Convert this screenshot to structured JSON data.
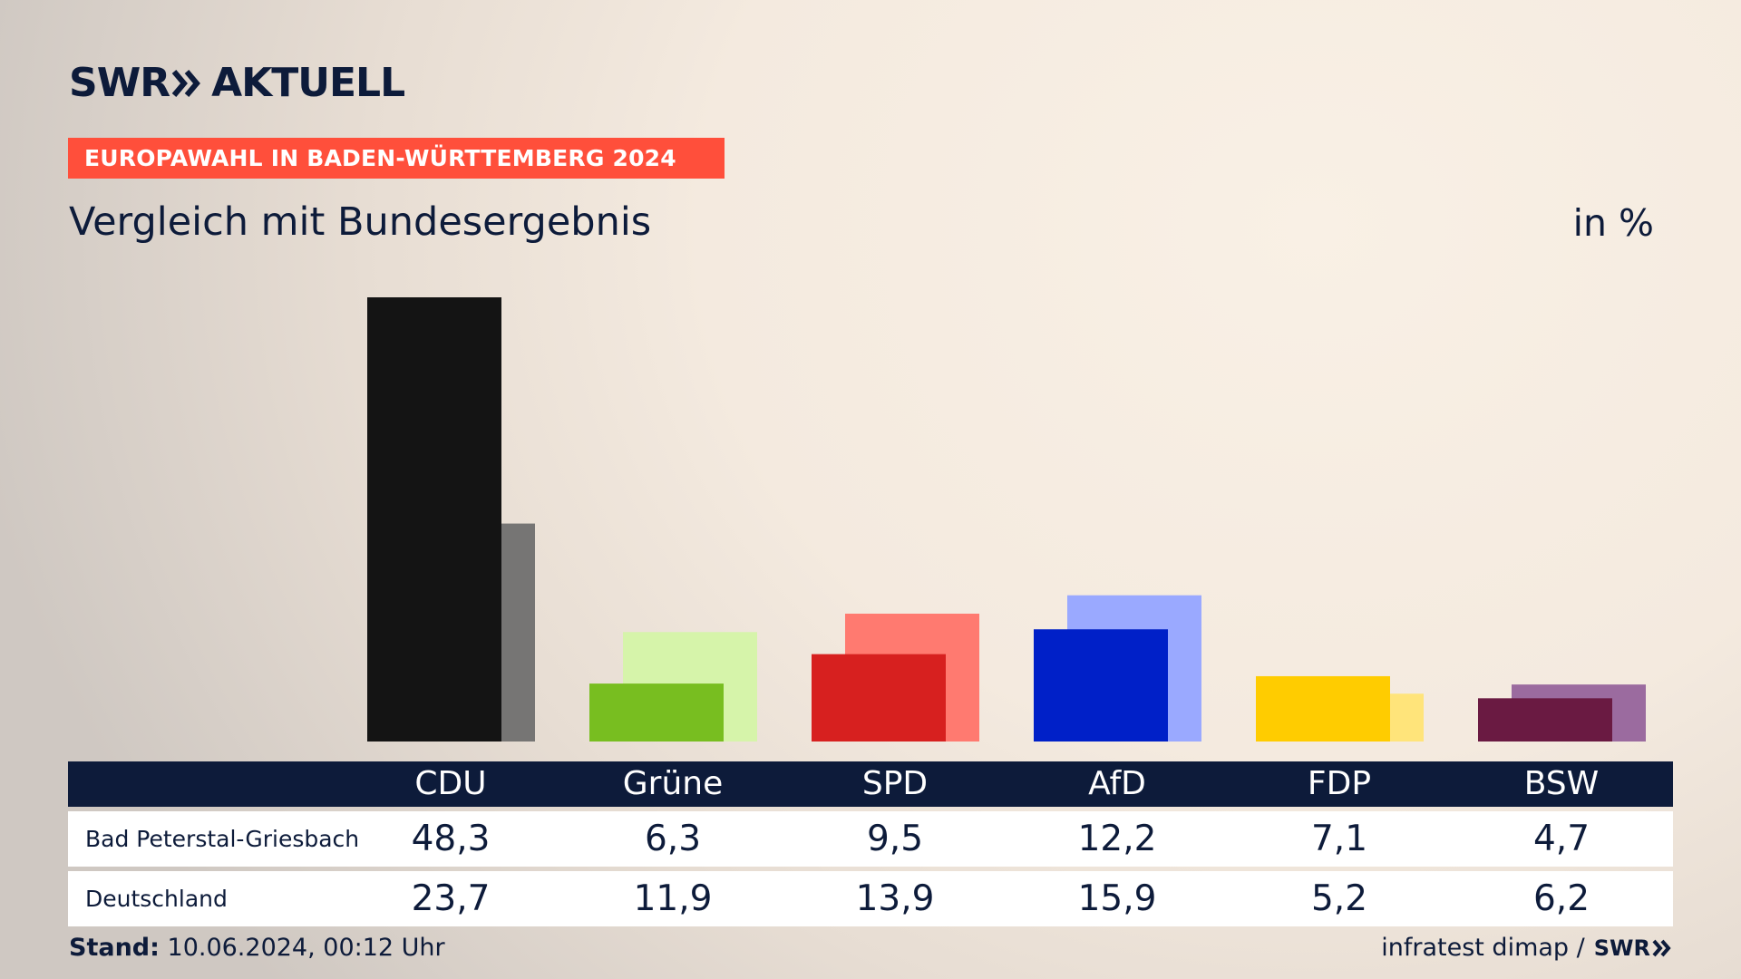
{
  "brand": {
    "logo_left": "SWR",
    "logo_right": "AKTUELL",
    "footer_logo": "SWR"
  },
  "kicker": "EUROPAWAHL IN BADEN-WÜRTTEMBERG 2024",
  "title": "Vergleich mit Bundesergebnis",
  "unit": "in %",
  "table": {
    "rows": [
      {
        "label": "Bad Peterstal-Griesbach"
      },
      {
        "label": "Deutschland"
      }
    ]
  },
  "footer": {
    "stand_label": "Stand:",
    "stand_value": "10.06.2024, 00:12 Uhr",
    "source": "infratest dimap /"
  },
  "chart_data": {
    "type": "bar",
    "categories": [
      "CDU",
      "Grüne",
      "SPD",
      "AfD",
      "FDP",
      "BSW"
    ],
    "series": [
      {
        "name": "Bad Peterstal-Griesbach",
        "values": [
          48.3,
          6.3,
          9.5,
          12.2,
          7.1,
          4.7
        ]
      },
      {
        "name": "Deutschland",
        "values": [
          23.7,
          11.9,
          13.9,
          15.9,
          5.2,
          6.2
        ]
      }
    ],
    "colors": {
      "local": [
        "#141414",
        "#78be20",
        "#d7201f",
        "#0020c8",
        "#ffcc00",
        "#6a1a42"
      ],
      "national": [
        "#767574",
        "#d6f4aa",
        "#ff7a70",
        "#9aa9ff",
        "#ffe47a",
        "#9b6b9f"
      ]
    },
    "ylim": [
      0,
      48.3
    ],
    "grid": false,
    "legend": "table-below"
  }
}
